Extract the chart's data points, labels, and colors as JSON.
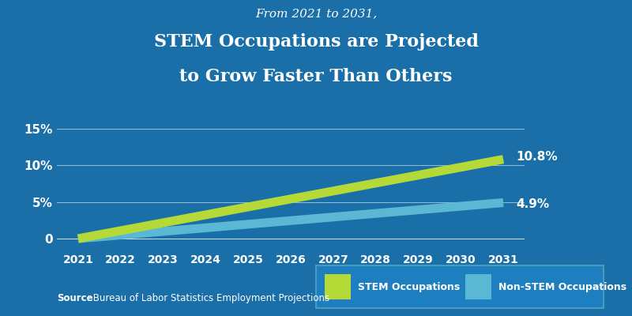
{
  "years": [
    2021,
    2022,
    2023,
    2024,
    2025,
    2026,
    2027,
    2028,
    2029,
    2030,
    2031
  ],
  "stem_values": [
    0.0,
    1.08,
    2.16,
    3.24,
    4.32,
    5.4,
    6.48,
    7.56,
    8.64,
    9.72,
    10.8
  ],
  "non_stem_values": [
    0.0,
    0.49,
    0.98,
    1.47,
    1.96,
    2.45,
    2.94,
    3.43,
    3.92,
    4.41,
    4.9
  ],
  "stem_color": "#b5d936",
  "non_stem_color": "#5bb8d4",
  "bg_color": "#1a6fa8",
  "title_line1": "From 2021 to 2031,",
  "title_line2": "STEM Occupations are Projected",
  "title_line3": "to Grow Faster Than Others",
  "stem_label_end": "10.8%",
  "non_stem_label_end": "4.9%",
  "ytick_labels": [
    "0",
    "5%",
    "10%",
    "15%"
  ],
  "ytick_values": [
    0,
    5,
    10,
    15
  ],
  "ylim": [
    -1.5,
    17
  ],
  "source_bold": "Source",
  "source_text": ": Bureau of Labor Statistics Employment Projections",
  "legend_stem": "STEM Occupations",
  "legend_non_stem": "Non-STEM Occupations",
  "line_width": 8,
  "grid_color": "#ffffff",
  "text_color": "#ffffff",
  "legend_bg": "#1e7fc0",
  "legend_border": "#4a9abe"
}
